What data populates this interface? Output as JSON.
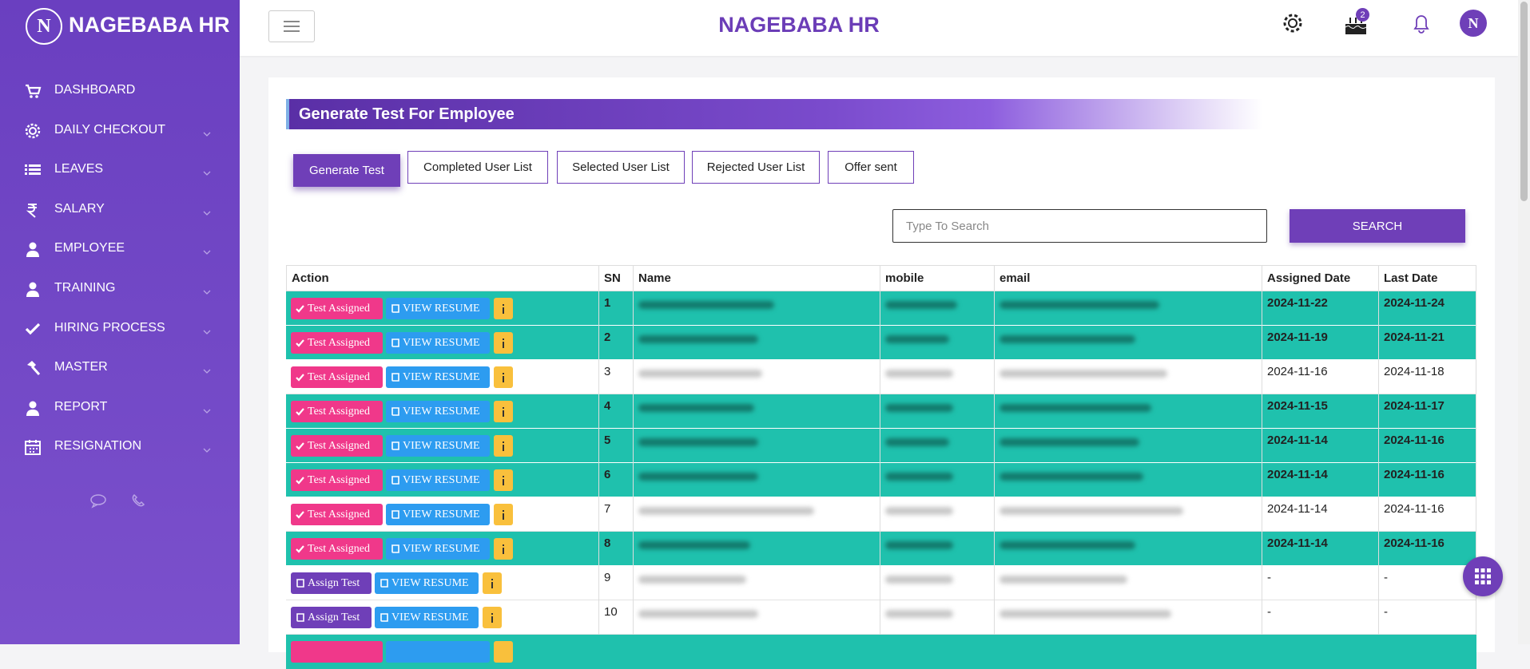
{
  "sidebar": {
    "logo_letter": "N",
    "brand": "NAGEBABA HR",
    "menu": [
      {
        "label": "DASHBOARD",
        "icon": "cart",
        "submenu": false
      },
      {
        "label": "DAILY CHECKOUT",
        "icon": "gear",
        "submenu": true
      },
      {
        "label": "LEAVES",
        "icon": "list",
        "submenu": true
      },
      {
        "label": "SALARY",
        "icon": "rupee",
        "submenu": true
      },
      {
        "label": "EMPLOYEE",
        "icon": "user",
        "submenu": true
      },
      {
        "label": "TRAINING",
        "icon": "user",
        "submenu": true
      },
      {
        "label": "HIRING PROCESS",
        "icon": "check",
        "submenu": true
      },
      {
        "label": "MASTER",
        "icon": "hammer",
        "submenu": true
      },
      {
        "label": "REPORT",
        "icon": "user",
        "submenu": true
      },
      {
        "label": "RESIGNATION",
        "icon": "calendar",
        "submenu": true
      }
    ]
  },
  "header": {
    "title": "NAGEBABA HR",
    "notification_badge": 2,
    "avatar_letter": "N"
  },
  "panel": {
    "title": "Generate Test For Employee",
    "tabs": [
      "Generate Test",
      "Completed User List",
      "Selected User List",
      "Rejected User List",
      "Offer sent"
    ],
    "active_tab": 0,
    "search_placeholder": "Type To Search",
    "search_button": "SEARCH"
  },
  "table": {
    "columns": [
      "Action",
      "SN",
      "Name",
      "mobile",
      "email",
      "Assigned Date",
      "Last Date"
    ],
    "rows": [
      {
        "action": "Test Assigned",
        "resume": "VIEW RESUME",
        "sn": 1,
        "assigned_date": "2024-11-22",
        "last_date": "2024-11-24",
        "highlighted": true
      },
      {
        "action": "Test Assigned",
        "resume": "VIEW RESUME",
        "sn": 2,
        "assigned_date": "2024-11-19",
        "last_date": "2024-11-21",
        "highlighted": true
      },
      {
        "action": "Test Assigned",
        "resume": "VIEW RESUME",
        "sn": 3,
        "assigned_date": "2024-11-16",
        "last_date": "2024-11-18",
        "highlighted": false
      },
      {
        "action": "Test Assigned",
        "resume": "VIEW RESUME",
        "sn": 4,
        "assigned_date": "2024-11-15",
        "last_date": "2024-11-17",
        "highlighted": true
      },
      {
        "action": "Test Assigned",
        "resume": "VIEW RESUME",
        "sn": 5,
        "assigned_date": "2024-11-14",
        "last_date": "2024-11-16",
        "highlighted": true
      },
      {
        "action": "Test Assigned",
        "resume": "VIEW RESUME",
        "sn": 6,
        "assigned_date": "2024-11-14",
        "last_date": "2024-11-16",
        "highlighted": true
      },
      {
        "action": "Test Assigned",
        "resume": "VIEW RESUME",
        "sn": 7,
        "assigned_date": "2024-11-14",
        "last_date": "2024-11-16",
        "highlighted": false
      },
      {
        "action": "Test Assigned",
        "resume": "VIEW RESUME",
        "sn": 8,
        "assigned_date": "2024-11-14",
        "last_date": "2024-11-16",
        "highlighted": true
      },
      {
        "action": "Assign Test",
        "resume": "VIEW RESUME",
        "sn": 9,
        "assigned_date": "-",
        "last_date": "-",
        "highlighted": false
      },
      {
        "action": "Assign Test",
        "resume": "VIEW RESUME",
        "sn": 10,
        "assigned_date": "-",
        "last_date": "-",
        "highlighted": false
      }
    ]
  }
}
